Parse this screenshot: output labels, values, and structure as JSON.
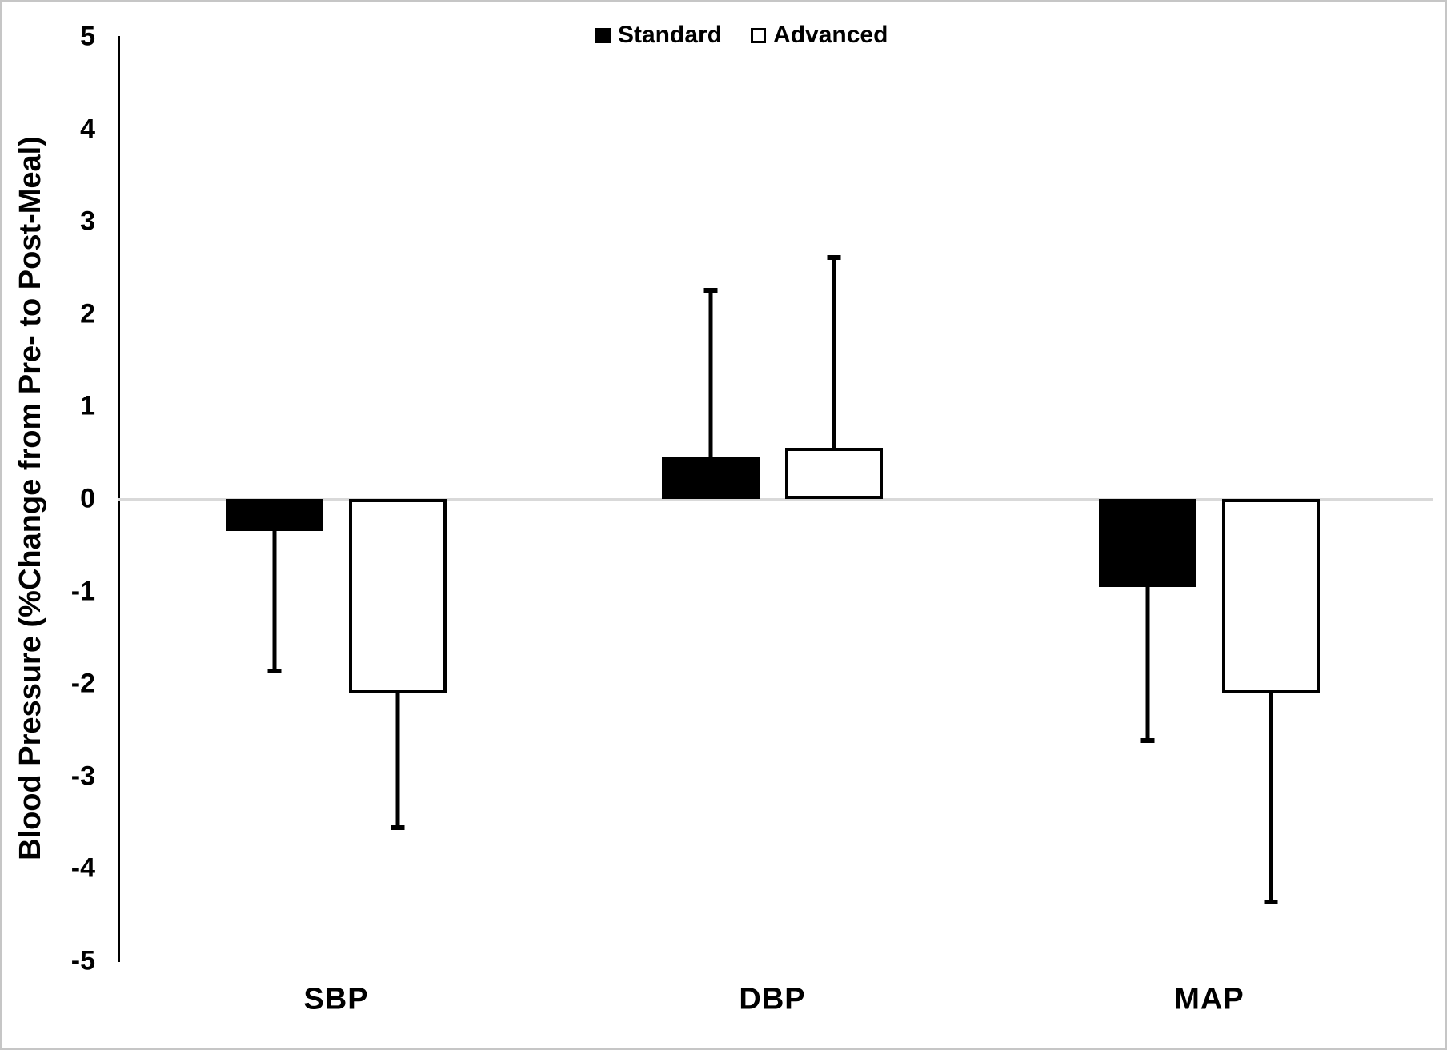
{
  "figure": {
    "background": "#ffffff",
    "frame_color": "#c6c6c6",
    "zero_line_color": "#d9d9d9",
    "axis_color": "#000000"
  },
  "legend": {
    "items": [
      {
        "label": "Standard",
        "fill": "#000000",
        "border": "#000000"
      },
      {
        "label": "Advanced",
        "fill": "#ffffff",
        "border": "#000000"
      }
    ]
  },
  "chart_data": {
    "type": "bar",
    "title": "",
    "xlabel": "",
    "ylabel": "Blood Pressure (%Change from Pre- to Post-Meal)",
    "categories": [
      "SBP",
      "DBP",
      "MAP"
    ],
    "series": [
      {
        "name": "Standard",
        "fill": "#000000",
        "style": "filled",
        "values": [
          -0.35,
          0.45,
          -0.95
        ],
        "errors": [
          1.5,
          1.8,
          1.65
        ]
      },
      {
        "name": "Advanced",
        "fill": "#ffffff",
        "style": "hollow",
        "values": [
          -2.1,
          0.55,
          -2.1
        ],
        "errors": [
          1.45,
          2.05,
          2.25
        ]
      }
    ],
    "error_direction": "away-from-zero",
    "ylim": [
      -5,
      5
    ],
    "yticks": [
      5,
      4,
      3,
      2,
      1,
      0,
      -1,
      -2,
      -3,
      -4,
      -5
    ],
    "grid": false,
    "zero_line": true,
    "legend_position": "top-center"
  }
}
